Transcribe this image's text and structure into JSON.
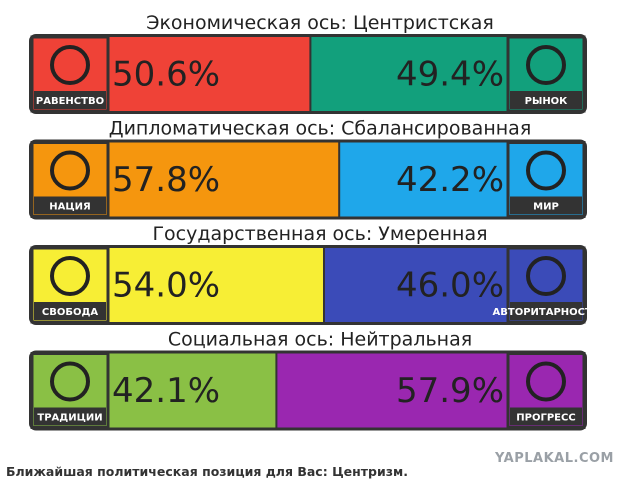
{
  "rows": [
    {
      "title": "Экономическая ось: Центристская",
      "left": {
        "label": "РАВЕНСТВО",
        "value": 50.6,
        "value_label": "50.6%",
        "color": "#ef4237"
      },
      "right": {
        "label": "РЫНОК",
        "value": 49.4,
        "value_label": "49.4%",
        "color": "#12a07c"
      }
    },
    {
      "title": "Дипломатическая ось: Сбалансированная",
      "left": {
        "label": "НАЦИЯ",
        "value": 57.8,
        "value_label": "57.8%",
        "color": "#f5960e"
      },
      "right": {
        "label": "МИР",
        "value": 42.2,
        "value_label": "42.2%",
        "color": "#1fa7ea"
      }
    },
    {
      "title": "Государственная ось: Умеренная",
      "left": {
        "label": "СВОБОДА",
        "value": 54.0,
        "value_label": "54.0%",
        "color": "#f7ee35"
      },
      "right": {
        "label": "АВТОРИТАРНОСТЬ",
        "value": 46.0,
        "value_label": "46.0%",
        "color": "#3b4bb8"
      }
    },
    {
      "title": "Социальная ось: Нейтральная",
      "left": {
        "label": "ТРАДИЦИИ",
        "value": 42.1,
        "value_label": "42.1%",
        "color": "#8ac045"
      },
      "right": {
        "label": "ПРОГРЕСС",
        "value": 57.9,
        "value_label": "57.9%",
        "color": "#9a27b0"
      }
    }
  ],
  "footer": {
    "text": "Ближайшая политическая позиция для Вас: Центризм.",
    "watermark": "YAPLAKAL.COM"
  }
}
